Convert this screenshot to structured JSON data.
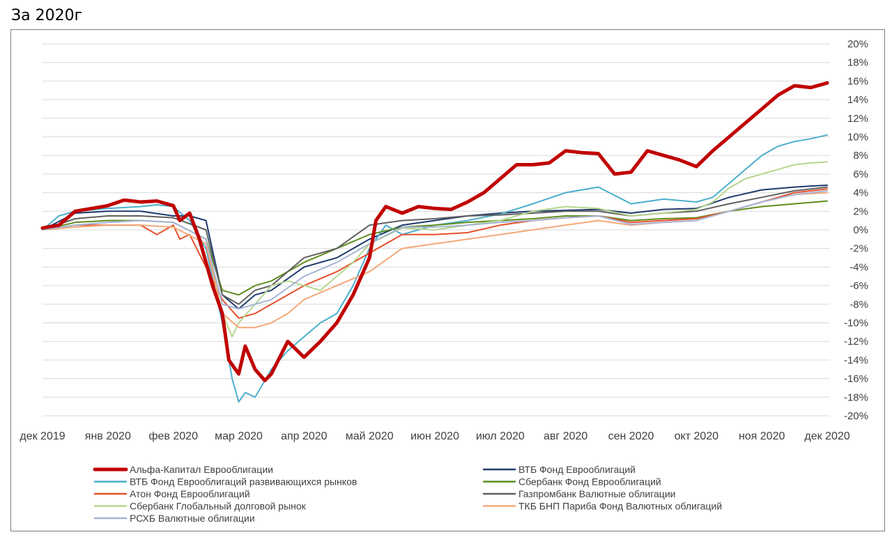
{
  "page": {
    "heading": "За 2020г"
  },
  "chart_data": {
    "type": "line",
    "title": "",
    "xlabel": "",
    "ylabel": "",
    "ylim": [
      -20,
      20
    ],
    "yticks": [
      20,
      18,
      16,
      14,
      12,
      10,
      8,
      6,
      4,
      2,
      0,
      -2,
      -4,
      -6,
      -8,
      -10,
      -12,
      -14,
      -16,
      -18,
      -20
    ],
    "ytick_labels": [
      "20%",
      "18%",
      "16%",
      "14%",
      "12%",
      "10%",
      "8%",
      "6%",
      "4%",
      "2%",
      "0%",
      "-2%",
      "-4%",
      "-6%",
      "-8%",
      "-10%",
      "-12%",
      "-14%",
      "-16%",
      "-18%",
      "-20%"
    ],
    "xlim": [
      0,
      12
    ],
    "xticks": [
      0,
      1,
      2,
      3,
      4,
      5,
      6,
      7,
      8,
      9,
      10,
      11,
      12
    ],
    "xtick_labels": [
      "дек 2019",
      "янв 2020",
      "фев 2020",
      "мар 2020",
      "апр 2020",
      "май 2020",
      "июн 2020",
      "июл 2020",
      "авг 2020",
      "сен 2020",
      "окт 2020",
      "ноя 2020",
      "дек 2020"
    ],
    "grid": "horizontal",
    "legend_position": "bottom",
    "series": [
      {
        "name": "Альфа-Капитал Еврооблигации",
        "color": "#c00000",
        "width": 5,
        "x": [
          0,
          0.25,
          0.5,
          0.75,
          1.0,
          1.25,
          1.5,
          1.75,
          2.0,
          2.1,
          2.25,
          2.4,
          2.6,
          2.75,
          2.85,
          3.0,
          3.1,
          3.25,
          3.4,
          3.5,
          3.75,
          4.0,
          4.25,
          4.5,
          4.75,
          5.0,
          5.1,
          5.25,
          5.5,
          5.75,
          6.0,
          6.25,
          6.5,
          6.75,
          7.0,
          7.25,
          7.5,
          7.75,
          8.0,
          8.25,
          8.5,
          8.75,
          9.0,
          9.25,
          9.5,
          9.75,
          10.0,
          10.25,
          10.5,
          10.75,
          11.0,
          11.25,
          11.5,
          11.75,
          12.0
        ],
        "y": [
          0.2,
          0.5,
          2.0,
          2.3,
          2.6,
          3.2,
          3.0,
          3.1,
          2.6,
          1.0,
          1.8,
          -1.0,
          -6.0,
          -9.0,
          -14.0,
          -15.5,
          -12.5,
          -15.0,
          -16.2,
          -15.5,
          -12.0,
          -13.7,
          -12.0,
          -10.0,
          -7.0,
          -3.0,
          1.0,
          2.5,
          1.8,
          2.5,
          2.3,
          2.2,
          3.0,
          4.0,
          5.5,
          7.0,
          7.0,
          7.2,
          8.5,
          8.3,
          8.2,
          6.0,
          6.2,
          8.5,
          8.0,
          7.5,
          6.8,
          8.5,
          10.0,
          11.5,
          13.0,
          14.5,
          15.5,
          15.3,
          15.8
        ]
      },
      {
        "name": "ВТБ Фонд Еврооблигаций",
        "color": "#1f3a6e",
        "width": 2,
        "x": [
          0,
          0.5,
          1.0,
          1.5,
          2.0,
          2.25,
          2.5,
          2.75,
          3.0,
          3.25,
          3.5,
          4.0,
          4.5,
          5.0,
          5.5,
          6.0,
          6.5,
          7.0,
          7.5,
          8.0,
          8.5,
          9.0,
          9.5,
          10.0,
          10.5,
          11.0,
          11.5,
          12.0
        ],
        "y": [
          0,
          1.8,
          2.0,
          2.0,
          1.5,
          1.5,
          1.0,
          -7.0,
          -8.5,
          -7.0,
          -6.5,
          -4.0,
          -3.0,
          -1.0,
          0.5,
          1.0,
          1.5,
          1.8,
          2.0,
          2.1,
          2.2,
          1.8,
          2.2,
          2.3,
          3.5,
          4.3,
          4.6,
          4.8
        ]
      },
      {
        "name": "ВТБ Фонд Еврооблигаций развивающихся рынков",
        "color": "#4aaecb",
        "width": 2,
        "x": [
          0,
          0.25,
          0.5,
          1.0,
          1.5,
          1.75,
          2.0,
          2.25,
          2.5,
          2.75,
          2.9,
          3.0,
          3.1,
          3.25,
          3.5,
          3.75,
          4.0,
          4.25,
          4.5,
          4.75,
          5.0,
          5.25,
          5.5,
          6.0,
          6.5,
          7.0,
          7.5,
          8.0,
          8.25,
          8.5,
          9.0,
          9.5,
          10.0,
          10.25,
          10.5,
          10.75,
          11.0,
          11.25,
          11.5,
          11.75,
          12.0
        ],
        "y": [
          0,
          1.5,
          2.0,
          2.3,
          2.5,
          2.7,
          2.5,
          1.0,
          -2.0,
          -10.0,
          -16.0,
          -18.5,
          -17.5,
          -18.0,
          -15.0,
          -13.0,
          -11.5,
          -10.0,
          -9.0,
          -6.0,
          -2.0,
          0.5,
          -0.5,
          0.5,
          1.0,
          1.7,
          2.8,
          4.0,
          4.3,
          4.6,
          2.8,
          3.3,
          3.0,
          3.5,
          5.0,
          6.5,
          8.0,
          9.0,
          9.5,
          9.8,
          10.2
        ]
      },
      {
        "name": "Сбербанк Фонд Еврооблигаций",
        "color": "#5f8d1e",
        "width": 2,
        "x": [
          0,
          0.5,
          1.0,
          1.5,
          2.0,
          2.5,
          2.75,
          3.0,
          3.25,
          3.5,
          4.0,
          4.5,
          5.0,
          5.5,
          6.0,
          6.5,
          7.0,
          7.5,
          8.0,
          8.5,
          9.0,
          9.5,
          10.0,
          10.5,
          11.0,
          11.5,
          12.0
        ],
        "y": [
          0,
          0.8,
          1.0,
          1.0,
          0.8,
          -1.0,
          -6.5,
          -7.0,
          -6.0,
          -5.5,
          -3.5,
          -2.0,
          -0.5,
          0.3,
          0.5,
          0.8,
          1.0,
          1.2,
          1.5,
          1.5,
          1.0,
          1.2,
          1.3,
          2.0,
          2.5,
          2.8,
          3.1
        ]
      },
      {
        "name": "Атон Фонд Еврооблигаций",
        "color": "#e8502a",
        "width": 2,
        "x": [
          0,
          0.5,
          1.0,
          1.5,
          1.75,
          2.0,
          2.1,
          2.25,
          2.5,
          2.75,
          3.0,
          3.25,
          3.5,
          4.0,
          4.5,
          5.0,
          5.5,
          6.0,
          6.5,
          7.0,
          7.5,
          8.0,
          8.5,
          9.0,
          9.5,
          10.0,
          10.5,
          11.0,
          11.5,
          12.0
        ],
        "y": [
          0,
          0.5,
          0.5,
          0.5,
          -0.5,
          0.5,
          -1.0,
          -0.5,
          -4.0,
          -7.5,
          -9.5,
          -9.0,
          -8.0,
          -6.0,
          -4.5,
          -2.5,
          -0.5,
          -0.5,
          -0.3,
          0.5,
          1.0,
          1.3,
          1.5,
          0.8,
          1.0,
          1.2,
          2.0,
          3.0,
          4.0,
          4.4
        ]
      },
      {
        "name": "Газпромбанк Валютные облигации",
        "color": "#606060",
        "width": 2,
        "x": [
          0,
          0.5,
          1.0,
          1.5,
          2.0,
          2.5,
          2.75,
          3.0,
          3.25,
          3.5,
          4.0,
          4.5,
          5.0,
          5.5,
          6.0,
          6.5,
          7.0,
          7.5,
          8.0,
          8.5,
          9.0,
          9.5,
          10.0,
          10.5,
          11.0,
          11.5,
          12.0
        ],
        "y": [
          0,
          1.2,
          1.5,
          1.5,
          1.3,
          0,
          -7.0,
          -8.0,
          -6.5,
          -6.0,
          -3.0,
          -2.0,
          0.5,
          1.0,
          1.2,
          1.5,
          1.6,
          1.8,
          2.0,
          2.0,
          1.5,
          1.8,
          2.0,
          2.8,
          3.5,
          4.2,
          4.6
        ]
      },
      {
        "name": "Сбербанк Глобальный долговой рынок",
        "color": "#b5d68e",
        "width": 2,
        "x": [
          0,
          0.5,
          1.0,
          1.5,
          2.0,
          2.5,
          2.75,
          2.9,
          3.0,
          3.25,
          3.5,
          3.75,
          4.0,
          4.25,
          4.5,
          4.75,
          5.0,
          5.5,
          6.0,
          6.5,
          7.0,
          7.5,
          8.0,
          8.5,
          9.0,
          9.5,
          10.0,
          10.25,
          10.5,
          10.75,
          11.0,
          11.25,
          11.5,
          11.75,
          12.0
        ],
        "y": [
          0,
          0.5,
          0.8,
          1.0,
          0.8,
          -1.0,
          -9.0,
          -11.5,
          -10.0,
          -8.0,
          -6.0,
          -5.5,
          -6.0,
          -6.5,
          -5.0,
          -3.5,
          -1.5,
          0.2,
          0,
          0.5,
          1.0,
          2.0,
          2.5,
          2.3,
          1.5,
          1.8,
          2.2,
          3.0,
          4.5,
          5.5,
          6.0,
          6.5,
          7.0,
          7.2,
          7.3
        ]
      },
      {
        "name": "ТКБ БНП Париба Фонд Валютных облигаций",
        "color": "#f5a878",
        "width": 2,
        "x": [
          0,
          0.5,
          1.0,
          1.5,
          2.0,
          2.5,
          2.75,
          3.0,
          3.25,
          3.5,
          3.75,
          4.0,
          4.5,
          5.0,
          5.5,
          6.0,
          6.5,
          7.0,
          7.5,
          8.0,
          8.5,
          9.0,
          9.5,
          10.0,
          10.5,
          11.0,
          11.5,
          12.0
        ],
        "y": [
          0,
          0.3,
          0.5,
          0.5,
          0.3,
          -1.5,
          -9.0,
          -10.5,
          -10.5,
          -10.0,
          -9.0,
          -7.5,
          -6.0,
          -4.5,
          -2.0,
          -1.5,
          -1.0,
          -0.5,
          0,
          0.5,
          1.0,
          0.5,
          0.8,
          1.0,
          2.0,
          3.0,
          3.8,
          4.0
        ]
      },
      {
        "name": "РСХБ Валютные облигации",
        "color": "#a6b4d6",
        "width": 2,
        "x": [
          0,
          0.5,
          1.0,
          1.5,
          2.0,
          2.5,
          2.75,
          3.0,
          3.25,
          3.5,
          4.0,
          4.5,
          5.0,
          5.5,
          6.0,
          6.5,
          7.0,
          7.5,
          8.0,
          8.5,
          9.0,
          9.5,
          10.0,
          10.5,
          11.0,
          11.5,
          12.0
        ],
        "y": [
          0,
          0.5,
          0.8,
          1.0,
          0.8,
          -1.0,
          -8.0,
          -8.5,
          -8.0,
          -7.5,
          -5.0,
          -3.5,
          -1.5,
          0.3,
          0.3,
          0.5,
          0.8,
          1.0,
          1.3,
          1.5,
          0.6,
          0.8,
          1.0,
          2.0,
          3.0,
          3.8,
          4.2
        ]
      }
    ]
  }
}
